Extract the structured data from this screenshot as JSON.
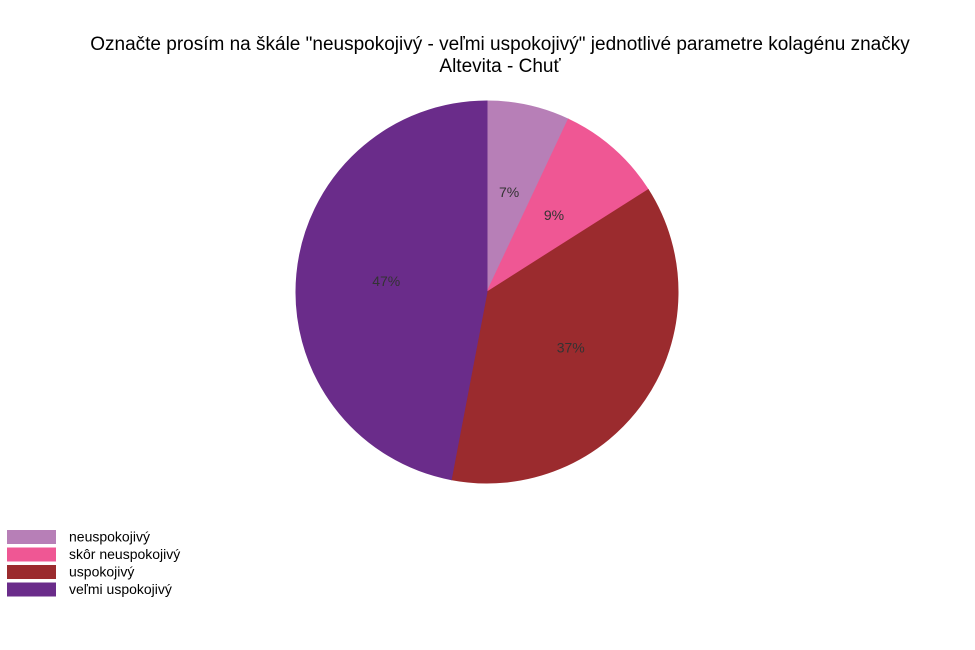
{
  "chart_data": {
    "type": "pie",
    "title": [
      "Označte prosím na škále \"neuspokojivý - veľmi uspokojivý\" jednotlivé parametre kolagénu značky",
      "Altevita - Chuť"
    ],
    "categories": [
      "neuspokojivý",
      "skôr neuspokojivý",
      "uspokojivý",
      "veľmi uspokojivý"
    ],
    "values": [
      7,
      9,
      37,
      47
    ],
    "value_labels": [
      "7%",
      "9%",
      "37%",
      "47%"
    ],
    "colors": [
      "#b77fb7",
      "#ef5794",
      "#9b2b2e",
      "#6a2c8a"
    ]
  }
}
